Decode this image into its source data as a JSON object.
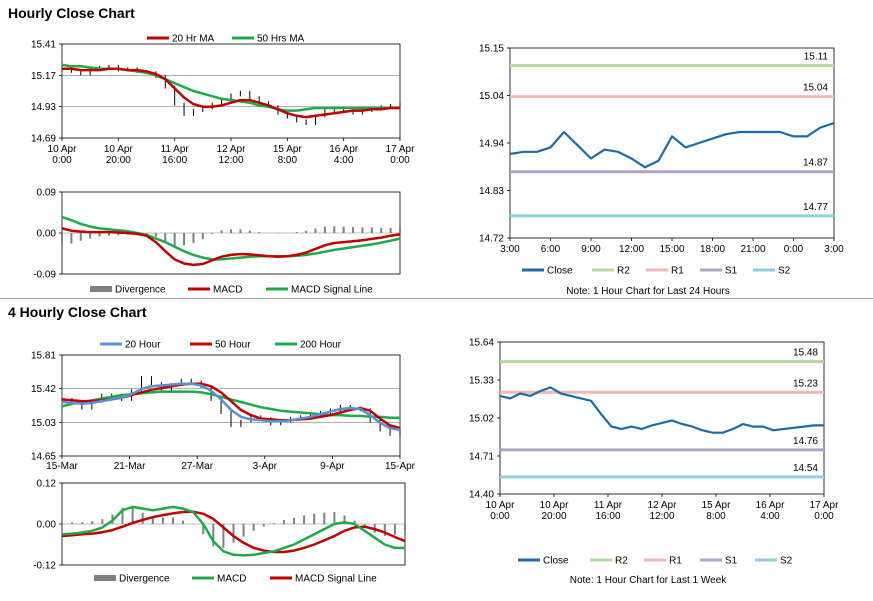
{
  "sections": {
    "hourly_title": "Hourly Close Chart",
    "four_hourly_title": "4 Hourly Close Chart"
  },
  "colors": {
    "close": "#1f6aa5",
    "ma_fast": "#c00000",
    "ma_slow": "#1eaa4a",
    "ma_20h_4h": "#5b8fd6",
    "r2": "#b5d99c",
    "r1": "#f2b8b8",
    "s1": "#b3a2c7",
    "s2": "#8fd0e0",
    "divergence": "#808080",
    "grid": "#808080"
  },
  "chart_data": [
    {
      "id": "hourly-price",
      "type": "line",
      "x_ticks": [
        "10 Apr|0:00",
        "10 Apr|20:00",
        "11 Apr|16:00",
        "12 Apr|12:00",
        "15 Apr|8:00",
        "16 Apr|4:00",
        "17 Apr|0:00"
      ],
      "y_ticks": [
        "15.41",
        "15.17",
        "14.93",
        "14.69"
      ],
      "ylim": [
        14.69,
        15.41
      ],
      "legend": [
        "20 Hr MA",
        "50 Hrs MA"
      ],
      "series": [
        {
          "name": "Close",
          "values": [
            15.21,
            15.2,
            15.18,
            15.22,
            15.23,
            15.24,
            15.21,
            15.22,
            15.2,
            15.19,
            15.16,
            15.08,
            14.95,
            14.87,
            14.9,
            14.92,
            14.95,
            14.98,
            15.02,
            15.04,
            15.0,
            14.96,
            14.93,
            14.88,
            14.85,
            14.82,
            14.8,
            14.86,
            14.9,
            14.92,
            14.9,
            14.88,
            14.9,
            14.92,
            14.93,
            14.94,
            14.95
          ]
        },
        {
          "name": "20 Hr MA",
          "values": [
            15.22,
            15.22,
            15.21,
            15.21,
            15.21,
            15.22,
            15.22,
            15.21,
            15.21,
            15.2,
            15.18,
            15.14,
            15.07,
            15.0,
            14.95,
            14.93,
            14.93,
            14.94,
            14.96,
            14.98,
            14.98,
            14.96,
            14.94,
            14.91,
            14.88,
            14.86,
            14.85,
            14.86,
            14.87,
            14.88,
            14.89,
            14.9,
            14.9,
            14.91,
            14.91,
            14.92,
            14.92
          ]
        },
        {
          "name": "50 Hrs MA",
          "values": [
            15.25,
            15.24,
            15.24,
            15.23,
            15.22,
            15.22,
            15.22,
            15.21,
            15.2,
            15.19,
            15.17,
            15.14,
            15.11,
            15.08,
            15.05,
            15.03,
            15.01,
            14.99,
            14.98,
            14.97,
            14.96,
            14.94,
            14.93,
            14.91,
            14.9,
            14.9,
            14.91,
            14.92,
            14.92,
            14.92,
            14.92,
            14.92,
            14.92,
            14.92,
            14.92,
            14.92,
            14.92
          ]
        }
      ]
    },
    {
      "id": "hourly-macd",
      "type": "line",
      "y_ticks": [
        "0.09",
        "0.00",
        "-0.09"
      ],
      "ylim": [
        -0.09,
        0.09
      ],
      "legend": [
        "Divergence",
        "MACD",
        "MACD Signal Line"
      ],
      "series": [
        {
          "name": "MACD",
          "values": [
            0.01,
            0.005,
            0.003,
            0.002,
            0.002,
            0.002,
            0.001,
            0.0,
            -0.002,
            -0.006,
            -0.02,
            -0.04,
            -0.058,
            -0.067,
            -0.07,
            -0.068,
            -0.06,
            -0.052,
            -0.048,
            -0.046,
            -0.047,
            -0.049,
            -0.051,
            -0.052,
            -0.051,
            -0.048,
            -0.043,
            -0.035,
            -0.027,
            -0.022,
            -0.02,
            -0.018,
            -0.016,
            -0.013,
            -0.01,
            -0.006,
            -0.003
          ]
        },
        {
          "name": "MACD Signal Line",
          "values": [
            0.035,
            0.028,
            0.02,
            0.014,
            0.01,
            0.008,
            0.006,
            0.004,
            0.0,
            -0.004,
            -0.012,
            -0.02,
            -0.03,
            -0.04,
            -0.048,
            -0.054,
            -0.058,
            -0.058,
            -0.056,
            -0.054,
            -0.052,
            -0.051,
            -0.051,
            -0.051,
            -0.051,
            -0.05,
            -0.048,
            -0.045,
            -0.041,
            -0.037,
            -0.034,
            -0.031,
            -0.028,
            -0.025,
            -0.021,
            -0.017,
            -0.012
          ]
        }
      ]
    },
    {
      "id": "hourly-pivot",
      "type": "line",
      "x_ticks": [
        "3:00",
        "6:00",
        "9:00",
        "12:00",
        "15:00",
        "18:00",
        "21:00",
        "0:00",
        "3:00"
      ],
      "y_ticks": [
        "15.15",
        "15.04",
        "14.94",
        "14.83",
        "14.72"
      ],
      "ylim": [
        14.72,
        15.15
      ],
      "levels": [
        {
          "name": "R2",
          "value": 15.11,
          "label": "15.11"
        },
        {
          "name": "R1",
          "value": 15.04,
          "label": "15.04"
        },
        {
          "name": "S1",
          "value": 14.87,
          "label": "14.87"
        },
        {
          "name": "S2",
          "value": 14.77,
          "label": "14.77"
        }
      ],
      "legend": [
        "Close",
        "R2",
        "R1",
        "S1",
        "S2"
      ],
      "note": "Note: 1 Hour Chart for Last 24 Hours",
      "series": [
        {
          "name": "Close",
          "values": [
            14.91,
            14.915,
            14.915,
            14.925,
            14.96,
            14.93,
            14.9,
            14.92,
            14.915,
            14.9,
            14.88,
            14.895,
            14.95,
            14.925,
            14.935,
            14.945,
            14.955,
            14.96,
            14.96,
            14.96,
            14.96,
            14.95,
            14.95,
            14.97,
            14.98
          ]
        }
      ]
    },
    {
      "id": "four-hourly-price",
      "type": "line",
      "x_ticks": [
        "15-Mar",
        "21-Mar",
        "27-Mar",
        "3-Apr",
        "9-Apr",
        "15-Apr"
      ],
      "y_ticks": [
        "15.81",
        "15.42",
        "15.03",
        "14.65"
      ],
      "ylim": [
        14.65,
        15.81
      ],
      "legend": [
        "20 Hour",
        "50 Hour",
        "200 Hour"
      ],
      "series": [
        {
          "name": "Close",
          "values": [
            15.3,
            15.25,
            15.2,
            15.28,
            15.35,
            15.32,
            15.3,
            15.4,
            15.55,
            15.48,
            15.42,
            15.47,
            15.52,
            15.5,
            15.45,
            15.3,
            15.15,
            15.0,
            15.05,
            15.1,
            15.08,
            15.02,
            15.05,
            15.08,
            15.1,
            15.12,
            15.15,
            15.18,
            15.22,
            15.2,
            15.18,
            15.05,
            14.95,
            14.9,
            14.95
          ]
        },
        {
          "name": "20 Hour",
          "values": [
            15.27,
            15.26,
            15.25,
            15.26,
            15.28,
            15.3,
            15.32,
            15.36,
            15.42,
            15.45,
            15.46,
            15.47,
            15.48,
            15.48,
            15.46,
            15.4,
            15.3,
            15.18,
            15.1,
            15.07,
            15.06,
            15.05,
            15.05,
            15.06,
            15.08,
            15.1,
            15.13,
            15.16,
            15.19,
            15.2,
            15.19,
            15.12,
            15.03,
            14.97,
            14.95
          ]
        },
        {
          "name": "50 Hour",
          "values": [
            15.3,
            15.29,
            15.28,
            15.28,
            15.29,
            15.3,
            15.32,
            15.35,
            15.38,
            15.41,
            15.43,
            15.45,
            15.47,
            15.48,
            15.48,
            15.45,
            15.38,
            15.28,
            15.18,
            15.12,
            15.08,
            15.07,
            15.06,
            15.06,
            15.07,
            15.08,
            15.1,
            15.12,
            15.15,
            15.18,
            15.2,
            15.17,
            15.08,
            15.0,
            14.97
          ]
        },
        {
          "name": "200 Hour",
          "values": [
            15.22,
            15.25,
            15.27,
            15.29,
            15.31,
            15.33,
            15.35,
            15.36,
            15.37,
            15.38,
            15.39,
            15.39,
            15.39,
            15.39,
            15.38,
            15.36,
            15.33,
            15.3,
            15.27,
            15.24,
            15.21,
            15.19,
            15.17,
            15.16,
            15.15,
            15.14,
            15.13,
            15.12,
            15.12,
            15.11,
            15.11,
            15.1,
            15.1,
            15.09,
            15.09
          ]
        }
      ]
    },
    {
      "id": "four-hourly-macd",
      "type": "line",
      "y_ticks": [
        "0.12",
        "0.00",
        "-0.12"
      ],
      "ylim": [
        -0.12,
        0.12
      ],
      "legend": [
        "Divergence",
        "MACD",
        "MACD Signal Line"
      ],
      "series": [
        {
          "name": "MACD",
          "values": [
            -0.03,
            -0.028,
            -0.025,
            -0.02,
            -0.01,
            0.01,
            0.04,
            0.05,
            0.045,
            0.04,
            0.045,
            0.05,
            0.045,
            0.035,
            0.0,
            -0.05,
            -0.08,
            -0.09,
            -0.092,
            -0.09,
            -0.085,
            -0.08,
            -0.07,
            -0.06,
            -0.045,
            -0.03,
            -0.015,
            0.0,
            0.005,
            0.0,
            -0.02,
            -0.04,
            -0.06,
            -0.07,
            -0.07
          ]
        },
        {
          "name": "MACD Signal Line",
          "values": [
            -0.035,
            -0.033,
            -0.03,
            -0.028,
            -0.024,
            -0.018,
            -0.008,
            0.003,
            0.012,
            0.02,
            0.026,
            0.031,
            0.035,
            0.036,
            0.03,
            0.015,
            -0.01,
            -0.035,
            -0.055,
            -0.07,
            -0.078,
            -0.082,
            -0.082,
            -0.078,
            -0.07,
            -0.06,
            -0.048,
            -0.035,
            -0.02,
            -0.01,
            -0.008,
            -0.015,
            -0.025,
            -0.038,
            -0.05
          ]
        }
      ]
    },
    {
      "id": "four-hourly-pivot",
      "type": "line",
      "x_ticks": [
        "10 Apr|0:00",
        "10 Apr|20:00",
        "11 Apr|16:00",
        "12 Apr|12:00",
        "15 Apr|8:00",
        "16 Apr|4:00",
        "17 Apr|0:00"
      ],
      "y_ticks": [
        "15.64",
        "15.33",
        "15.02",
        "14.71",
        "14.40"
      ],
      "ylim": [
        14.4,
        15.64
      ],
      "levels": [
        {
          "name": "R2",
          "value": 15.48,
          "label": "15.48"
        },
        {
          "name": "R1",
          "value": 15.23,
          "label": "15.23"
        },
        {
          "name": "S1",
          "value": 14.76,
          "label": "14.76"
        },
        {
          "name": "S2",
          "value": 14.54,
          "label": "14.54"
        }
      ],
      "legend": [
        "Close",
        "R2",
        "R1",
        "S1",
        "S2"
      ],
      "note": "Note: 1 Hour Chart for Last 1 Week",
      "series": [
        {
          "name": "Close",
          "values": [
            15.2,
            15.18,
            15.22,
            15.2,
            15.24,
            15.27,
            15.22,
            15.2,
            15.18,
            15.16,
            15.05,
            14.95,
            14.93,
            14.95,
            14.93,
            14.96,
            14.98,
            15.0,
            14.97,
            14.95,
            14.92,
            14.9,
            14.9,
            14.93,
            14.97,
            14.95,
            14.95,
            14.92,
            14.93,
            14.94,
            14.95,
            14.96,
            14.96
          ]
        }
      ]
    }
  ]
}
